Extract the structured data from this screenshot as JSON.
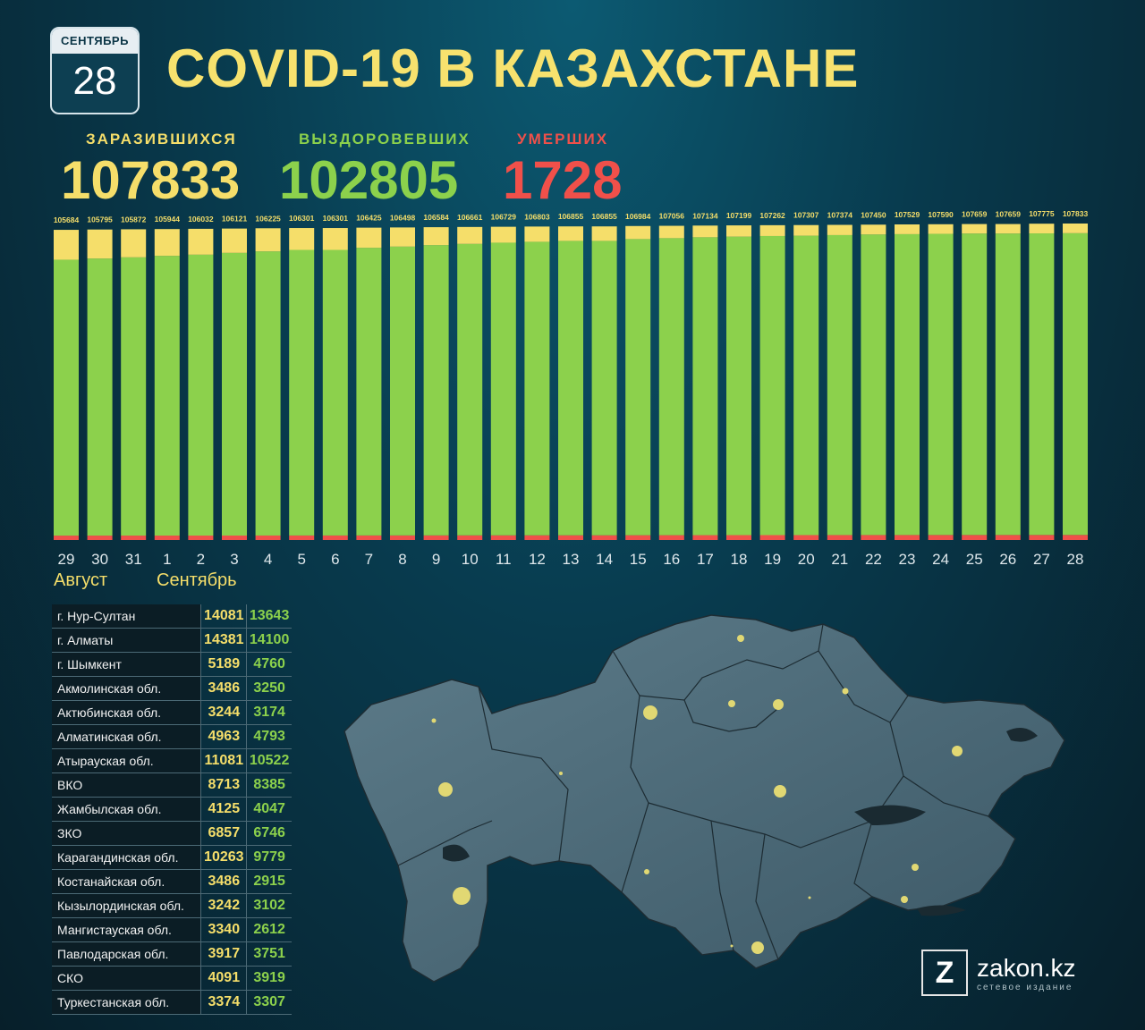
{
  "calendar": {
    "month": "СЕНТЯБРЬ",
    "day": "28"
  },
  "title": "COVID-19 В КАЗАХСТАНЕ",
  "stats": {
    "infected": {
      "label": "ЗАРАЗИВШИХСЯ",
      "value": "107833",
      "color": "#f5de6a"
    },
    "recovered": {
      "label": "ВЫЗДОРОВЕВШИХ",
      "value": "102805",
      "color": "#8cd14c"
    },
    "deaths": {
      "label": "УМЕРШИХ",
      "value": "1728",
      "color": "#f0504a"
    }
  },
  "chart_data": {
    "type": "bar",
    "stacked": true,
    "categories": [
      "29",
      "30",
      "31",
      "1",
      "2",
      "3",
      "4",
      "5",
      "6",
      "7",
      "8",
      "9",
      "10",
      "11",
      "12",
      "13",
      "14",
      "15",
      "16",
      "17",
      "18",
      "19",
      "20",
      "21",
      "22",
      "23",
      "24",
      "25",
      "26",
      "27",
      "28"
    ],
    "totals": [
      105684,
      105795,
      105872,
      105944,
      106032,
      106121,
      106225,
      106301,
      106301,
      106425,
      106498,
      106584,
      106661,
      106729,
      106803,
      106855,
      106855,
      106984,
      107056,
      107134,
      107199,
      107262,
      107307,
      107374,
      107450,
      107529,
      107590,
      107659,
      107659,
      107775,
      107833
    ],
    "series": [
      {
        "color": "#f0504a",
        "values": [
          1505,
          1507,
          1510,
          1514,
          1518,
          1526,
          1535,
          1545,
          1545,
          1559,
          1568,
          1578,
          1590,
          1601,
          1610,
          1617,
          1617,
          1637,
          1648,
          1657,
          1668,
          1677,
          1684,
          1691,
          1699,
          1705,
          1711,
          1716,
          1716,
          1722,
          1728
        ]
      },
      {
        "color": "#8cd14c",
        "values": [
          94000,
          94400,
          94800,
          95300,
          95700,
          96300,
          96800,
          97300,
          97300,
          98000,
          98400,
          98900,
          99300,
          99700,
          100000,
          100300,
          100300,
          100900,
          101200,
          101500,
          101700,
          101900,
          102000,
          102200,
          102400,
          102500,
          102600,
          102700,
          102700,
          102750,
          102805
        ]
      },
      {
        "color": "#f5de6a",
        "values": [
          10179,
          9888,
          9562,
          9130,
          8814,
          8295,
          7890,
          7456,
          7456,
          6866,
          6530,
          6106,
          5771,
          5428,
          5193,
          4938,
          4938,
          4447,
          4208,
          3977,
          3831,
          3685,
          3623,
          3483,
          3351,
          3324,
          3279,
          3243,
          3243,
          3303,
          3300
        ]
      }
    ],
    "month_labels": [
      "Август",
      "Сентябрь"
    ]
  },
  "regions": [
    {
      "name": "г. Нур-Султан",
      "infected": "14081",
      "recovered": "13643"
    },
    {
      "name": "г. Алматы",
      "infected": "14381",
      "recovered": "14100"
    },
    {
      "name": "г. Шымкент",
      "infected": "5189",
      "recovered": "4760"
    },
    {
      "name": "Акмолинская обл.",
      "infected": "3486",
      "recovered": "3250"
    },
    {
      "name": "Актюбинская обл.",
      "infected": "3244",
      "recovered": "3174"
    },
    {
      "name": "Алматинская обл.",
      "infected": "4963",
      "recovered": "4793"
    },
    {
      "name": "Атырауская обл.",
      "infected": "11081",
      "recovered": "10522"
    },
    {
      "name": "ВКО",
      "infected": "8713",
      "recovered": "8385"
    },
    {
      "name": "Жамбылская обл.",
      "infected": "4125",
      "recovered": "4047"
    },
    {
      "name": "ЗКО",
      "infected": "6857",
      "recovered": "6746"
    },
    {
      "name": "Карагандинская обл.",
      "infected": "10263",
      "recovered": "9779"
    },
    {
      "name": "Костанайская обл.",
      "infected": "3486",
      "recovered": "2915"
    },
    {
      "name": "Кызылординская обл.",
      "infected": "3242",
      "recovered": "3102"
    },
    {
      "name": "Мангистауская обл.",
      "infected": "3340",
      "recovered": "2612"
    },
    {
      "name": "Павлодарская обл.",
      "infected": "3917",
      "recovered": "3751"
    },
    {
      "name": "СКО",
      "infected": "4091",
      "recovered": "3919"
    },
    {
      "name": "Туркестанская обл.",
      "infected": "3374",
      "recovered": "3307"
    }
  ],
  "logo": {
    "name": "zakon.kz",
    "subtitle": "сетевое издание",
    "letter": "Z"
  }
}
